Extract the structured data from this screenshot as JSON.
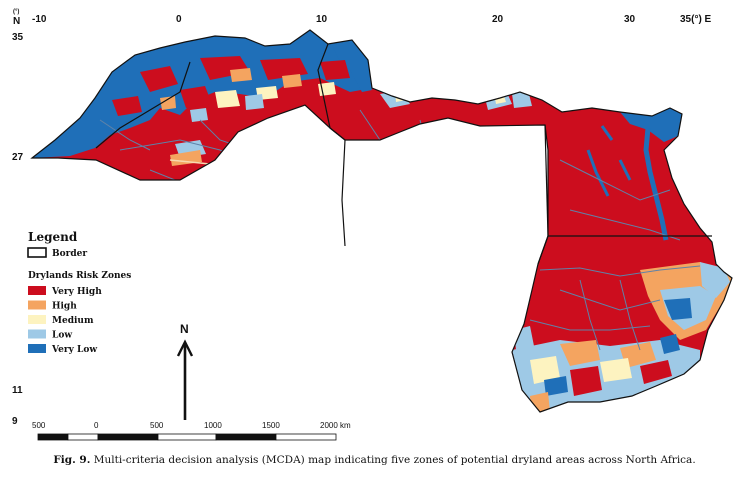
{
  "map": {
    "top_ticks": [
      "-10",
      "0",
      "10",
      "20",
      "30",
      "35(°) E"
    ],
    "north_corner": "N",
    "degree_corner": "(°)",
    "left_ticks": [
      "35",
      "27",
      "11",
      "9"
    ]
  },
  "legend": {
    "title": "Legend",
    "border_label": "Border",
    "subtitle": "Drylands Risk Zones",
    "items": [
      {
        "label": "Very High",
        "color": "#cc0d1e"
      },
      {
        "label": "High",
        "color": "#f4a460"
      },
      {
        "label": "Medium",
        "color": "#fdf3c0"
      },
      {
        "label": "Low",
        "color": "#9ec9e6"
      },
      {
        "label": "Very Low",
        "color": "#1f6fb8"
      }
    ]
  },
  "north_arrow": {
    "label": "N"
  },
  "scale_bar": {
    "labels": [
      "500",
      "0",
      "500",
      "1000",
      "1500",
      "2000 km"
    ]
  },
  "caption": {
    "label": "Fig. 9.",
    "text": "Multi-criteria decision analysis (MCDA) map indicating five zones of potential dryland areas across North Africa."
  },
  "colors": {
    "very_high": "#cc0d1e",
    "high": "#f4a460",
    "medium": "#fdf3c0",
    "low": "#9ec9e6",
    "very_low": "#1f6fb8",
    "admin_line": "#5f82a8",
    "border": "#111111"
  }
}
